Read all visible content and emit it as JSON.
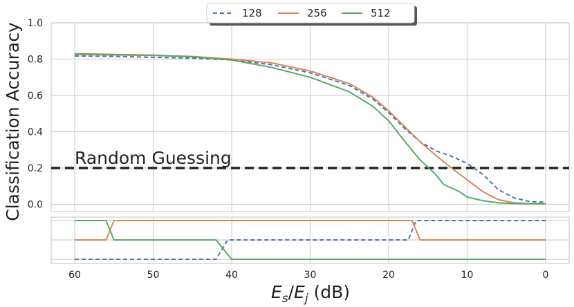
{
  "chart_data": {
    "type": "line",
    "xlabel": "E_s/E_j (dB)",
    "xlabel_parts": {
      "e1": "E",
      "s1": "s",
      "slash": "/",
      "e2": "E",
      "s2": "j",
      "unit": " (dB)"
    },
    "ylabel": "Classification Accuracy",
    "xlim": [
      63,
      -3
    ],
    "ylim": [
      -0.04,
      1.0
    ],
    "x_reversed": true,
    "xticks": [
      "60",
      "50",
      "40",
      "30",
      "20",
      "10",
      "0"
    ],
    "yticks": [
      "0.0",
      "0.2",
      "0.4",
      "0.6",
      "0.8",
      "1.0"
    ],
    "grid": true,
    "legend_position": "top-center",
    "colors": {
      "128": "#4C72B0",
      "256": "#DD8452",
      "512": "#55A868",
      "random": "#222222",
      "grid": "#d0d0d0"
    },
    "annotation": {
      "text": "Random Guessing",
      "y": 0.2
    },
    "series": [
      {
        "name": "128",
        "style": "dashed",
        "points": [
          [
            60,
            0.817
          ],
          [
            55,
            0.815
          ],
          [
            50,
            0.81
          ],
          [
            45,
            0.805
          ],
          [
            40,
            0.795
          ],
          [
            35,
            0.77
          ],
          [
            30,
            0.725
          ],
          [
            25,
            0.655
          ],
          [
            22,
            0.58
          ],
          [
            20,
            0.505
          ],
          [
            18,
            0.42
          ],
          [
            16,
            0.345
          ],
          [
            14,
            0.295
          ],
          [
            12,
            0.265
          ],
          [
            10,
            0.225
          ],
          [
            8,
            0.165
          ],
          [
            6,
            0.08
          ],
          [
            4,
            0.035
          ],
          [
            2,
            0.015
          ],
          [
            0,
            0.012
          ]
        ]
      },
      {
        "name": "256",
        "style": "solid",
        "points": [
          [
            60,
            0.825
          ],
          [
            55,
            0.823
          ],
          [
            50,
            0.82
          ],
          [
            45,
            0.815
          ],
          [
            40,
            0.8
          ],
          [
            35,
            0.78
          ],
          [
            30,
            0.735
          ],
          [
            25,
            0.665
          ],
          [
            22,
            0.59
          ],
          [
            20,
            0.515
          ],
          [
            18,
            0.43
          ],
          [
            16,
            0.345
          ],
          [
            14,
            0.27
          ],
          [
            12,
            0.2
          ],
          [
            10,
            0.135
          ],
          [
            8,
            0.07
          ],
          [
            6,
            0.025
          ],
          [
            4,
            0.008
          ],
          [
            2,
            0.004
          ],
          [
            0,
            0.004
          ]
        ]
      },
      {
        "name": "512",
        "style": "solid",
        "points": [
          [
            60,
            0.83
          ],
          [
            55,
            0.826
          ],
          [
            50,
            0.822
          ],
          [
            45,
            0.812
          ],
          [
            40,
            0.795
          ],
          [
            35,
            0.755
          ],
          [
            30,
            0.7
          ],
          [
            25,
            0.62
          ],
          [
            22,
            0.54
          ],
          [
            20,
            0.46
          ],
          [
            18,
            0.35
          ],
          [
            16,
            0.245
          ],
          [
            14,
            0.165
          ],
          [
            13,
            0.11
          ],
          [
            11,
            0.07
          ],
          [
            10,
            0.04
          ],
          [
            8,
            0.02
          ],
          [
            6,
            0.008
          ],
          [
            4,
            0.004
          ],
          [
            2,
            0.003
          ],
          [
            0,
            0.003
          ]
        ]
      }
    ],
    "rank_panel": {
      "series": [
        {
          "name": "128",
          "style": "dashed",
          "points": [
            [
              60,
              1
            ],
            [
              42,
              1
            ],
            [
              40.5,
              2
            ],
            [
              17.5,
              2
            ],
            [
              16.5,
              3
            ],
            [
              0,
              3
            ]
          ]
        },
        {
          "name": "256",
          "style": "solid",
          "points": [
            [
              60,
              2
            ],
            [
              56,
              2
            ],
            [
              55,
              3
            ],
            [
              17,
              3
            ],
            [
              16,
              2
            ],
            [
              0,
              2
            ]
          ]
        },
        {
          "name": "512",
          "style": "solid",
          "points": [
            [
              60,
              3
            ],
            [
              56,
              3
            ],
            [
              55,
              2
            ],
            [
              42,
              2
            ],
            [
              40,
              1
            ],
            [
              0,
              1
            ]
          ]
        }
      ]
    }
  }
}
